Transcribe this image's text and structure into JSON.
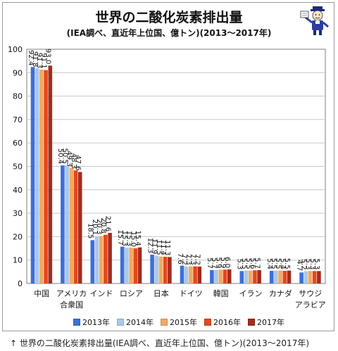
{
  "title": "世界の二酸化炭素排出量",
  "subtitle": "(IEA調べ、直近年上位国、億トン)(2013〜2017年)",
  "caption": "↑ 世界の二酸化炭素排出量(IEA調べ、直近年上位国、億トン)(2013〜2017年)",
  "chart_data": {
    "type": "bar",
    "categories": [
      "中国",
      "アメリカ\n合衆国",
      "インド",
      "ロシア",
      "日本",
      "ドイツ",
      "韓国",
      "イラン",
      "カナダ",
      "サウジ\nアラビア"
    ],
    "series": [
      {
        "name": "2013年",
        "color": "#3d6fd8",
        "values": [
          92.4,
          50.4,
          18.5,
          15.7,
          12.3,
          7.6,
          5.7,
          5.3,
          5.4,
          4.7
        ]
      },
      {
        "name": "2014年",
        "color": "#a9c8ea",
        "values": [
          91.8,
          50.5,
          20.1,
          15.3,
          11.9,
          7.2,
          5.7,
          5.5,
          5.5,
          5.2
        ]
      },
      {
        "name": "2015年",
        "color": "#f3a960",
        "values": [
          91.3,
          49.3,
          20.3,
          15.3,
          11.5,
          7.3,
          5.9,
          5.5,
          5.5,
          5.3
        ]
      },
      {
        "name": "2016年",
        "color": "#e5471b",
        "values": [
          91.1,
          48.3,
          20.8,
          15.0,
          11.4,
          7.3,
          5.9,
          5.6,
          5.4,
          5.3
        ]
      },
      {
        "name": "2017年",
        "color": "#a52b1e",
        "values": [
          93.0,
          47.6,
          21.6,
          15.4,
          11.3,
          7.2,
          6.0,
          5.7,
          5.5,
          5.3
        ]
      }
    ],
    "yticks": [
      0,
      10,
      20,
      30,
      40,
      50,
      60,
      70,
      80,
      90,
      100
    ],
    "ylim": [
      0,
      100
    ],
    "grid": true,
    "legend_position": "bottom"
  }
}
